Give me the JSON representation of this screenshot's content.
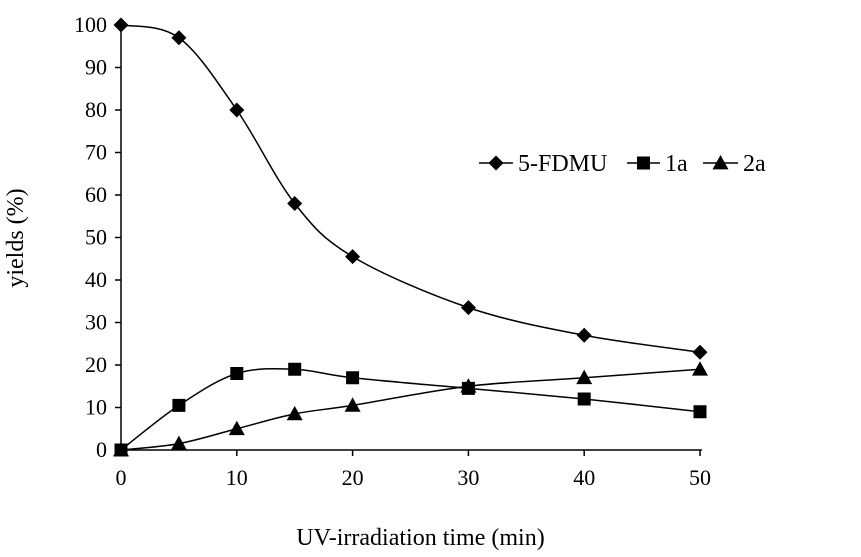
{
  "chart_data": {
    "type": "line",
    "xlabel": "UV-irradiation time (min)",
    "ylabel": "yields (%)",
    "x": [
      0,
      5,
      10,
      15,
      20,
      30,
      40,
      50
    ],
    "xticks": [
      0,
      10,
      20,
      30,
      40,
      50
    ],
    "yticks": [
      0,
      10,
      20,
      30,
      40,
      50,
      60,
      70,
      80,
      90,
      100
    ],
    "xlim": [
      0,
      50
    ],
    "ylim": [
      0,
      100
    ],
    "grid": false,
    "legend_position": "right",
    "series": [
      {
        "name": "5-FDMU",
        "marker": "diamond",
        "values": [
          100,
          97,
          80,
          58,
          45.5,
          33.5,
          27,
          23
        ]
      },
      {
        "name": "1a",
        "marker": "square",
        "values": [
          0,
          10.5,
          18,
          19,
          17,
          14.5,
          12,
          9
        ]
      },
      {
        "name": "2a",
        "marker": "triangle",
        "values": [
          0,
          1.5,
          5,
          8.5,
          10.5,
          15,
          17,
          19
        ]
      }
    ],
    "colors": {
      "line": "#000000",
      "marker": "#000000"
    }
  }
}
